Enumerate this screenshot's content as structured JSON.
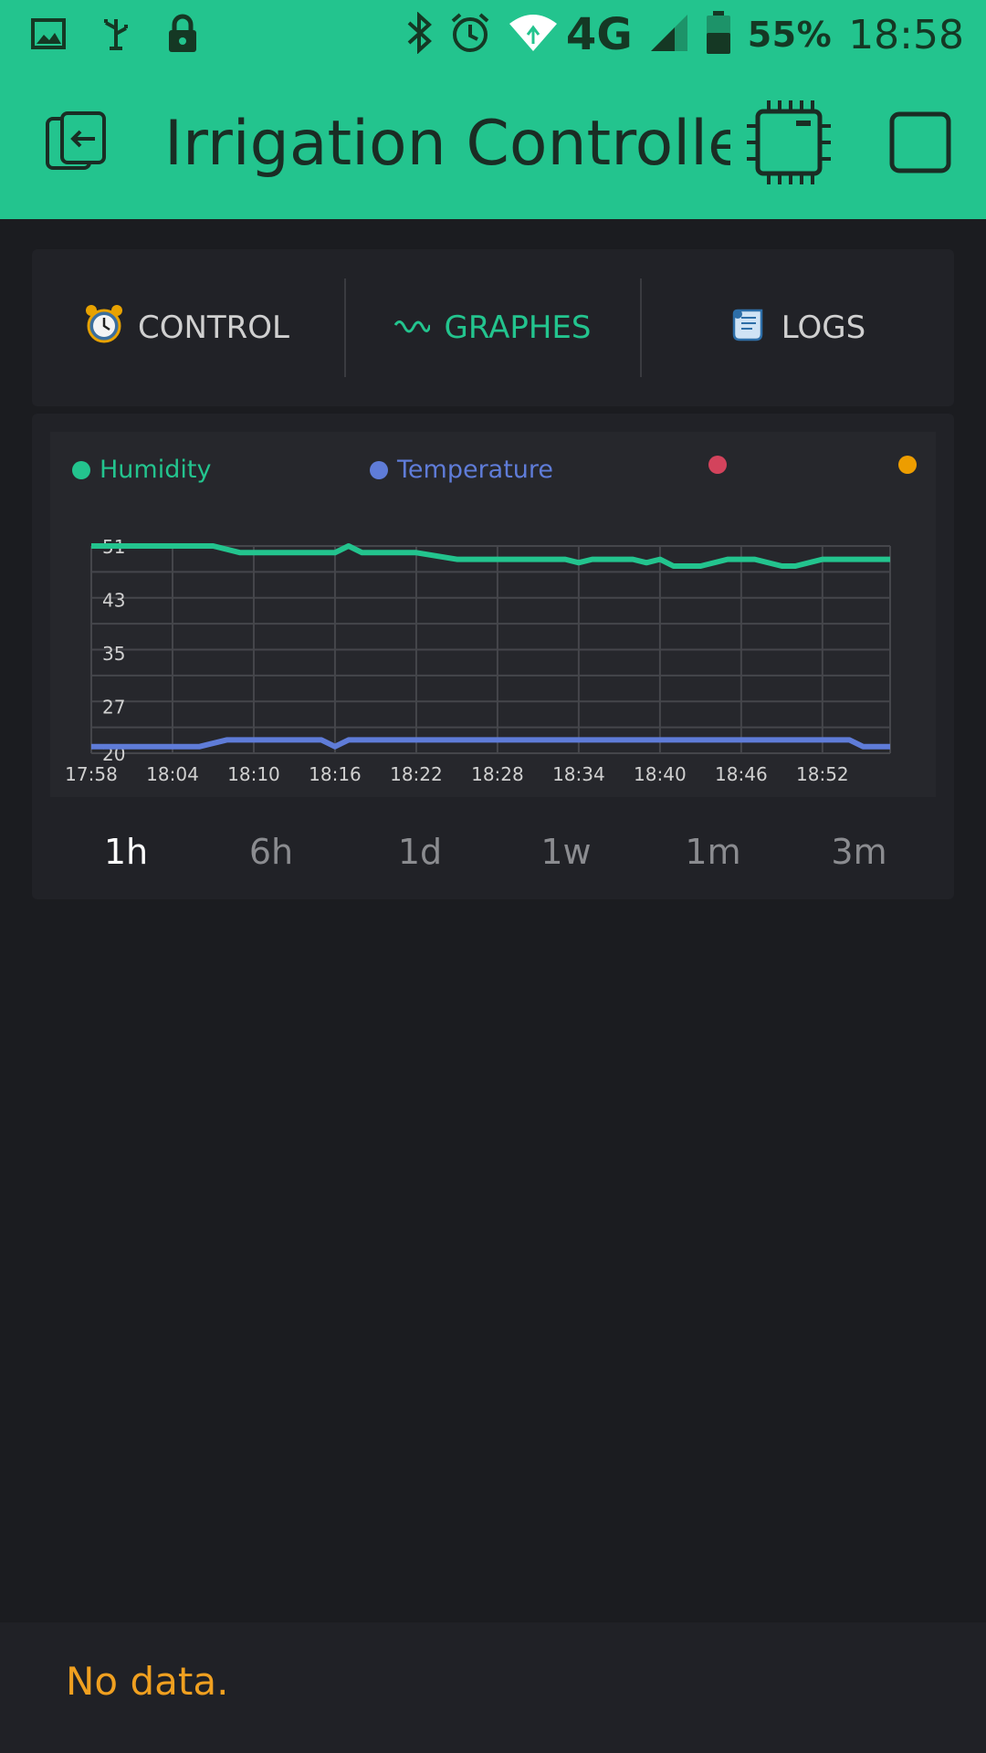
{
  "status_bar": {
    "battery_percent": "55%",
    "network": "4G",
    "time": "18:58",
    "icons": [
      "image-icon",
      "usb-debug-icon",
      "lock-icon",
      "bluetooth-icon",
      "alarm-icon",
      "wifi-icon",
      "cell-signal-icon",
      "battery-icon"
    ]
  },
  "toolbar": {
    "title": "Irrigation Controlle",
    "left_icon": "exit-icon",
    "right_icons": [
      "device-chip-icon",
      "play-stop-icon"
    ],
    "bg_color": "#23c48e"
  },
  "tabs": [
    {
      "label": "CONTROL",
      "icon": "alarm-clock-icon",
      "active": false
    },
    {
      "label": "GRAPHES",
      "icon": "wave-icon",
      "active": true
    },
    {
      "label": "LOGS",
      "icon": "scroll-icon",
      "active": false
    }
  ],
  "legend": [
    {
      "name": "Humidity",
      "color": "#23c48e"
    },
    {
      "name": "Temperature",
      "color": "#5f7cd8"
    },
    {
      "name": "",
      "color": "#d3435c"
    },
    {
      "name": "",
      "color": "#ed9d00"
    }
  ],
  "chart_data": {
    "type": "line",
    "x_ticks": [
      "17:58",
      "18:04",
      "18:10",
      "18:16",
      "18:22",
      "18:28",
      "18:34",
      "18:40",
      "18:46",
      "18:52"
    ],
    "y_ticks": [
      51,
      43,
      35,
      27,
      20
    ],
    "ylim": [
      20,
      51
    ],
    "xlim_minutes": [
      "17:58",
      "18:57"
    ],
    "grid": true,
    "legend_position": "top",
    "series": [
      {
        "name": "Humidity",
        "color": "#23c48e",
        "x": [
          "17:58",
          "18:01",
          "18:04",
          "18:07",
          "18:09",
          "18:10",
          "18:13",
          "18:16",
          "18:17",
          "18:18",
          "18:19",
          "18:22",
          "18:25",
          "18:26",
          "18:28",
          "18:31",
          "18:33",
          "18:34",
          "18:35",
          "18:38",
          "18:39",
          "18:40",
          "18:41",
          "18:43",
          "18:45",
          "18:47",
          "18:49",
          "18:50",
          "18:52",
          "18:55",
          "18:57"
        ],
        "y": [
          51,
          51,
          51,
          51,
          50,
          50,
          50,
          50,
          51,
          50,
          50,
          50,
          49,
          49,
          49,
          49,
          49,
          48.5,
          49,
          49,
          48.5,
          49,
          48,
          48,
          49,
          49,
          48,
          48,
          49,
          49,
          49
        ]
      },
      {
        "name": "Temperature",
        "color": "#5f7cd8",
        "x": [
          "17:58",
          "18:01",
          "18:04",
          "18:06",
          "18:08",
          "18:10",
          "18:13",
          "18:15",
          "18:16",
          "18:17",
          "18:20",
          "18:25",
          "18:30",
          "18:35",
          "18:40",
          "18:45",
          "18:50",
          "18:54",
          "18:55",
          "18:57"
        ],
        "y": [
          21,
          21,
          21,
          21,
          22,
          22,
          22,
          22,
          21,
          22,
          22,
          22,
          22,
          22,
          22,
          22,
          22,
          22,
          21,
          21
        ]
      }
    ]
  },
  "periods": [
    {
      "label": "1h",
      "active": true
    },
    {
      "label": "6h",
      "active": false
    },
    {
      "label": "1d",
      "active": false
    },
    {
      "label": "1w",
      "active": false
    },
    {
      "label": "1m",
      "active": false
    },
    {
      "label": "3m",
      "active": false
    }
  ],
  "log": {
    "message": "No data.",
    "color": "#f0a020"
  }
}
